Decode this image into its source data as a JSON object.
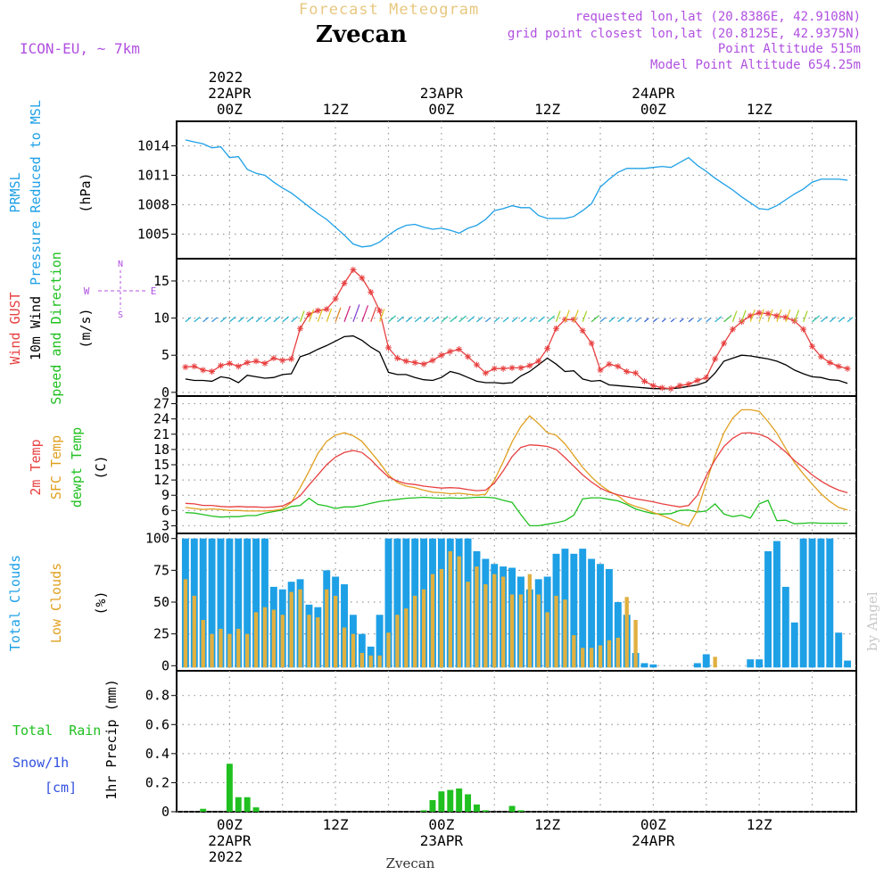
{
  "header": {
    "product_title": "Forecast Meteogram",
    "station": "Zvecan",
    "model": "ICON-EU, ~ 7km",
    "requested": "requested lon,lat (20.8386E, 42.9108N)",
    "grid_point": "grid point closest lon,lat (20.8125E, 42.9375N)",
    "point_altitude": "Point Altitude 515m",
    "model_altitude": "Model Point Altitude 654.25m",
    "credit": "by Angel",
    "footer_station": "Zvecan"
  },
  "time_axis": {
    "top_year": "2022",
    "top_labels": [
      {
        "hour": 0,
        "time": "00Z",
        "date": "22APR"
      },
      {
        "hour": 12,
        "time": "12Z",
        "date": ""
      },
      {
        "hour": 24,
        "time": "00Z",
        "date": "23APR"
      },
      {
        "hour": 36,
        "time": "12Z",
        "date": ""
      },
      {
        "hour": 48,
        "time": "00Z",
        "date": "24APR"
      },
      {
        "hour": 60,
        "time": "12Z",
        "date": ""
      }
    ],
    "bottom_year": "2022",
    "start_hour": -6,
    "end_hour": 71
  },
  "colors": {
    "pressure": "#1ea0e6",
    "gust": "#e84040",
    "wind": "#000000",
    "temp": "#e84040",
    "sfc_temp": "#e0a020",
    "dewpt": "#20c020",
    "total_clouds": "#1ea0e6",
    "low_clouds": "#e0b040",
    "rain": "#20c020",
    "snow": "#3050e0",
    "compass": "#b050e0",
    "title_gold": "#e8c880",
    "info_purple": "#b050e0"
  },
  "chart_data": [
    {
      "type": "line",
      "panel": "pressure",
      "ylabel_lines": [
        "PRMSL",
        "Pressure Reduced to MSL"
      ],
      "unit": "(hPa)",
      "yticks": [
        1005,
        1008,
        1011,
        1014
      ],
      "ylim": [
        1002.5,
        1016.5
      ],
      "x": [
        -5,
        -4,
        -3,
        -2,
        -1,
        0,
        1,
        2,
        3,
        4,
        5,
        6,
        7,
        8,
        9,
        10,
        11,
        12,
        13,
        14,
        15,
        16,
        17,
        18,
        19,
        20,
        21,
        22,
        23,
        24,
        25,
        26,
        27,
        28,
        29,
        30,
        31,
        32,
        33,
        34,
        35,
        36,
        37,
        38,
        39,
        40,
        41,
        42,
        43,
        44,
        45,
        46,
        47,
        48,
        49,
        50,
        51,
        52,
        53,
        54,
        55,
        56,
        57,
        58,
        59,
        60,
        61,
        62,
        63,
        64,
        65,
        66,
        67,
        68,
        69,
        70
      ],
      "series": [
        {
          "key": "pressure",
          "values": [
            1014.6,
            1014.4,
            1014.2,
            1013.8,
            1013.9,
            1012.8,
            1012.9,
            1011.6,
            1011.2,
            1011.0,
            1010.3,
            1009.7,
            1009.2,
            1008.5,
            1007.8,
            1007.1,
            1006.5,
            1005.7,
            1004.9,
            1004.0,
            1003.7,
            1003.8,
            1004.2,
            1004.9,
            1005.5,
            1005.9,
            1006.0,
            1005.7,
            1005.5,
            1005.6,
            1005.4,
            1005.1,
            1005.6,
            1005.9,
            1006.5,
            1007.4,
            1007.6,
            1007.9,
            1007.7,
            1007.7,
            1006.9,
            1006.6,
            1006.6,
            1006.6,
            1006.8,
            1007.4,
            1008.1,
            1009.8,
            1010.6,
            1011.3,
            1011.7,
            1011.7,
            1011.7,
            1011.8,
            1011.9,
            1011.8,
            1012.3,
            1012.8,
            1012.0,
            1011.4,
            1010.7,
            1010.1,
            1009.5,
            1008.8,
            1008.2,
            1007.6,
            1007.5,
            1007.9,
            1008.5,
            1009.1,
            1009.6,
            1010.3,
            1010.6,
            1010.6,
            1010.6,
            1010.5
          ]
        }
      ]
    },
    {
      "type": "line",
      "panel": "wind",
      "ylabel_lines": [
        "Wind GUST",
        "10m Wind",
        "Speed and Direction"
      ],
      "unit": "(m/s)",
      "yticks": [
        0,
        5,
        10,
        15
      ],
      "ylim": [
        -0.5,
        18
      ],
      "compass": {
        "n": "N",
        "s": "S",
        "w": "W",
        "e": "E"
      },
      "x": [
        -5,
        -4,
        -3,
        -2,
        -1,
        0,
        1,
        2,
        3,
        4,
        5,
        6,
        7,
        8,
        9,
        10,
        11,
        12,
        13,
        14,
        15,
        16,
        17,
        18,
        19,
        20,
        21,
        22,
        23,
        24,
        25,
        26,
        27,
        28,
        29,
        30,
        31,
        32,
        33,
        34,
        35,
        36,
        37,
        38,
        39,
        40,
        41,
        42,
        43,
        44,
        45,
        46,
        47,
        48,
        49,
        50,
        51,
        52,
        53,
        54,
        55,
        56,
        57,
        58,
        59,
        60,
        61,
        62,
        63,
        64,
        65,
        66,
        67,
        68,
        69,
        70
      ],
      "series": [
        {
          "key": "gust",
          "name": "Wind GUST",
          "values": [
            3.4,
            3.5,
            3.0,
            2.8,
            3.6,
            3.9,
            3.5,
            4.0,
            4.2,
            3.9,
            4.6,
            4.3,
            4.5,
            8.6,
            10.5,
            11.0,
            11.2,
            12.6,
            14.7,
            16.5,
            15.4,
            13.5,
            11.0,
            6.0,
            4.6,
            4.2,
            4.0,
            3.8,
            4.3,
            5.0,
            5.5,
            5.8,
            4.8,
            3.7,
            2.6,
            3.2,
            3.2,
            3.3,
            3.3,
            3.6,
            4.2,
            5.9,
            8.6,
            9.8,
            9.8,
            8.3,
            6.6,
            3.0,
            3.8,
            3.5,
            2.8,
            2.6,
            1.5,
            0.9,
            0.6,
            0.5,
            0.9,
            1.1,
            1.6,
            2.0,
            4.5,
            6.6,
            8.5,
            9.5,
            10.3,
            10.7,
            10.6,
            10.3,
            10.1,
            9.6,
            8.5,
            6.2,
            4.8,
            4.0,
            3.5,
            3.2
          ]
        },
        {
          "key": "wind",
          "name": "10m Wind",
          "values": [
            1.8,
            1.6,
            1.6,
            1.5,
            2.1,
            1.9,
            1.3,
            2.3,
            2.1,
            1.9,
            2.0,
            2.4,
            2.5,
            4.8,
            5.2,
            5.8,
            6.3,
            6.9,
            7.5,
            7.6,
            7.0,
            6.1,
            5.4,
            2.7,
            2.4,
            2.4,
            2.0,
            1.7,
            1.6,
            2.0,
            2.8,
            2.5,
            2.0,
            1.5,
            1.3,
            1.3,
            1.2,
            1.3,
            2.2,
            2.8,
            3.7,
            4.6,
            3.8,
            2.8,
            2.9,
            1.8,
            1.5,
            1.6,
            1.0,
            0.9,
            0.8,
            0.7,
            0.6,
            0.5,
            0.5,
            0.5,
            0.6,
            0.8,
            1.0,
            1.4,
            2.6,
            4.2,
            4.6,
            5.0,
            4.9,
            4.7,
            4.5,
            4.2,
            3.7,
            3.0,
            2.5,
            2.1,
            2.0,
            1.7,
            1.6,
            1.2
          ]
        }
      ]
    },
    {
      "type": "line",
      "panel": "temperature",
      "ylabel_lines": [
        "2m Temp",
        "SFC Temp",
        "dewpt Temp"
      ],
      "unit": "(C)",
      "yticks": [
        3,
        6,
        9,
        12,
        15,
        18,
        21,
        24,
        27
      ],
      "ylim": [
        1.5,
        28.5
      ],
      "x": [
        -5,
        -4,
        -3,
        -2,
        -1,
        0,
        1,
        2,
        3,
        4,
        5,
        6,
        7,
        8,
        9,
        10,
        11,
        12,
        13,
        14,
        15,
        16,
        17,
        18,
        19,
        20,
        21,
        22,
        23,
        24,
        25,
        26,
        27,
        28,
        29,
        30,
        31,
        32,
        33,
        34,
        35,
        36,
        37,
        38,
        39,
        40,
        41,
        42,
        43,
        44,
        45,
        46,
        47,
        48,
        49,
        50,
        51,
        52,
        53,
        54,
        55,
        56,
        57,
        58,
        59,
        60,
        61,
        62,
        63,
        64,
        65,
        66,
        67,
        68,
        69,
        70
      ],
      "series": [
        {
          "key": "temp",
          "name": "2m Temp",
          "values": [
            7.4,
            7.3,
            7.0,
            7.0,
            6.8,
            6.7,
            6.8,
            6.7,
            6.7,
            6.6,
            6.7,
            6.9,
            7.7,
            8.9,
            11.0,
            13.0,
            15.0,
            16.5,
            17.4,
            17.8,
            17.4,
            16.0,
            14.2,
            12.6,
            11.8,
            11.3,
            11.1,
            10.8,
            10.6,
            10.4,
            10.5,
            10.4,
            10.1,
            9.9,
            10.0,
            11.4,
            13.8,
            16.6,
            18.4,
            18.9,
            18.8,
            18.6,
            18.0,
            16.4,
            14.7,
            13.0,
            11.6,
            10.4,
            9.6,
            9.1,
            8.7,
            8.3,
            8.0,
            7.7,
            7.3,
            7.0,
            6.7,
            7.0,
            9.0,
            12.8,
            16.0,
            18.6,
            20.2,
            21.2,
            21.3,
            21.0,
            20.3,
            19.0,
            17.5,
            15.8,
            14.5,
            13.0,
            11.8,
            10.8,
            10.0,
            9.5
          ]
        },
        {
          "key": "sfc",
          "name": "SFC Temp",
          "values": [
            6.6,
            6.4,
            6.2,
            6.3,
            6.2,
            6.0,
            6.0,
            5.9,
            5.9,
            5.9,
            6.0,
            6.3,
            7.6,
            10.5,
            13.7,
            17.2,
            19.6,
            20.8,
            21.3,
            20.7,
            19.6,
            17.5,
            15.4,
            13.0,
            11.5,
            10.8,
            10.5,
            10.0,
            9.6,
            9.5,
            9.3,
            9.4,
            9.2,
            9.0,
            9.2,
            12.0,
            15.6,
            19.5,
            22.5,
            24.6,
            23.1,
            21.3,
            20.8,
            19.1,
            16.8,
            14.5,
            12.6,
            11.0,
            9.8,
            8.9,
            7.5,
            6.8,
            6.3,
            5.6,
            5.0,
            4.3,
            3.5,
            2.9,
            6.0,
            11.5,
            16.8,
            21.3,
            24.2,
            25.8,
            25.8,
            25.5,
            23.5,
            21.2,
            18.2,
            15.4,
            13.2,
            11.2,
            9.3,
            7.8,
            6.6,
            6.1
          ]
        },
        {
          "key": "dewpt",
          "name": "dewpt Temp",
          "values": [
            5.6,
            5.5,
            5.2,
            4.9,
            4.7,
            4.8,
            4.8,
            5.0,
            5.0,
            5.5,
            5.8,
            6.1,
            6.8,
            7.0,
            8.4,
            7.2,
            6.9,
            6.4,
            6.7,
            6.7,
            7.0,
            7.4,
            7.8,
            8.0,
            8.2,
            8.4,
            8.5,
            8.6,
            8.5,
            8.4,
            8.5,
            8.4,
            8.5,
            8.6,
            8.6,
            8.5,
            8.0,
            7.6,
            5.2,
            3.0,
            3.0,
            3.3,
            3.6,
            4.0,
            5.1,
            8.3,
            8.5,
            8.5,
            8.2,
            7.9,
            7.2,
            6.3,
            5.8,
            5.4,
            5.3,
            5.4,
            6.0,
            6.1,
            5.7,
            5.9,
            7.3,
            5.3,
            4.8,
            5.1,
            4.5,
            7.3,
            8.0,
            4.0,
            4.1,
            3.4,
            3.5,
            3.6,
            3.5,
            3.5,
            3.5,
            3.5
          ]
        }
      ]
    },
    {
      "type": "bar",
      "panel": "clouds",
      "ylabel_lines": [
        "Total Clouds",
        "Low Clouds"
      ],
      "unit": "(%)",
      "yticks": [
        0,
        25,
        50,
        75,
        100
      ],
      "ylim": [
        -4,
        104
      ],
      "x": [
        -5,
        -4,
        -3,
        -2,
        -1,
        0,
        1,
        2,
        3,
        4,
        5,
        6,
        7,
        8,
        9,
        10,
        11,
        12,
        13,
        14,
        15,
        16,
        17,
        18,
        19,
        20,
        21,
        22,
        23,
        24,
        25,
        26,
        27,
        28,
        29,
        30,
        31,
        32,
        33,
        34,
        35,
        36,
        37,
        38,
        39,
        40,
        41,
        42,
        43,
        44,
        45,
        46,
        47,
        48,
        49,
        50,
        51,
        52,
        53,
        54,
        55,
        56,
        57,
        58,
        59,
        60,
        61,
        62,
        63,
        64,
        65,
        66,
        67,
        68,
        69,
        70
      ],
      "series": [
        {
          "key": "total",
          "name": "Total Clouds",
          "values": [
            100,
            100,
            100,
            100,
            100,
            100,
            100,
            100,
            100,
            100,
            62,
            60,
            66,
            68,
            48,
            46,
            75,
            70,
            64,
            40,
            25,
            15,
            40,
            100,
            100,
            100,
            100,
            100,
            100,
            100,
            100,
            100,
            100,
            90,
            84,
            80,
            78,
            77,
            70,
            60,
            68,
            70,
            88,
            92,
            88,
            92,
            84,
            80,
            76,
            50,
            40,
            10,
            2,
            1,
            0,
            0,
            0,
            0,
            2,
            9,
            0,
            0,
            0,
            0,
            5,
            5,
            90,
            98,
            62,
            34,
            100,
            100,
            100,
            100,
            26,
            4
          ]
        },
        {
          "key": "low",
          "name": "Low Clouds",
          "values": [
            68,
            55,
            36,
            25,
            29,
            25,
            29,
            25,
            42,
            46,
            44,
            40,
            58,
            60,
            40,
            38,
            60,
            55,
            30,
            25,
            10,
            8,
            8,
            26,
            40,
            45,
            55,
            60,
            72,
            76,
            90,
            86,
            66,
            78,
            64,
            72,
            70,
            56,
            56,
            72,
            56,
            42,
            55,
            52,
            24,
            14,
            14,
            16,
            20,
            22,
            54,
            36,
            0,
            0,
            0,
            0,
            0,
            0,
            0,
            0,
            7,
            0,
            0,
            0,
            0,
            0,
            0,
            0,
            0,
            0,
            0,
            0,
            0,
            0,
            0,
            0
          ]
        }
      ]
    },
    {
      "type": "bar",
      "panel": "precipitation",
      "ylabel_lines": [
        "1hr Precip (mm)"
      ],
      "left_labels": {
        "total_rain": "Total  Rain",
        "snow": "Snow/1h",
        "cm": "[cm]"
      },
      "yticks": [
        0,
        0.2,
        0.4,
        0.6,
        0.8
      ],
      "ylim": [
        0,
        0.97
      ],
      "x": [
        -3,
        0,
        1,
        2,
        3,
        22,
        23,
        24,
        25,
        26,
        27,
        28,
        29,
        32,
        33
      ],
      "series": [
        {
          "key": "rain",
          "name": "Total Rain",
          "values": [
            0.02,
            0.33,
            0.1,
            0.1,
            0.03,
            0.01,
            0.08,
            0.14,
            0.15,
            0.16,
            0.12,
            0.05,
            0.01,
            0.04,
            0.01
          ]
        }
      ]
    }
  ]
}
